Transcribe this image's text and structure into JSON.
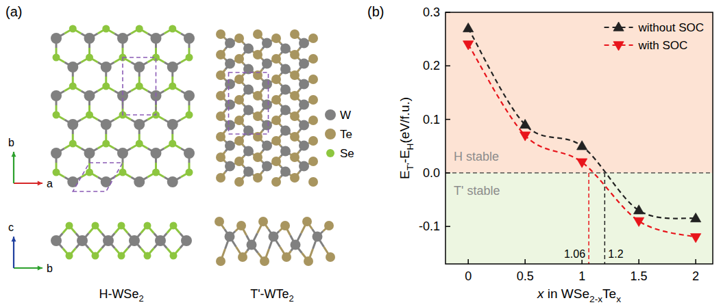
{
  "diagram": {
    "label": "(a)",
    "axes": {
      "top": [
        "a",
        "b"
      ],
      "side": [
        "b",
        "c"
      ]
    },
    "legend": [
      {
        "name": "W",
        "color": "#808080"
      },
      {
        "name": "Te",
        "color": "#a8955f"
      },
      {
        "name": "Se",
        "color": "#8dc63f"
      }
    ],
    "structures": [
      {
        "label": [
          {
            "t": "H-WSe"
          },
          {
            "t": "2",
            "sub": true
          }
        ]
      },
      {
        "label": [
          {
            "t": "T'-WTe"
          },
          {
            "t": "2",
            "sub": true
          }
        ]
      }
    ]
  },
  "chart_data": {
    "type": "line",
    "panel_label": "(b)",
    "x_label": [
      {
        "t": "x",
        "italic": true
      },
      {
        "t": " in WSe"
      },
      {
        "t": "2-x",
        "sub": true
      },
      {
        "t": "Te"
      },
      {
        "t": "x",
        "sub": true
      }
    ],
    "y_label": [
      {
        "t": "E"
      },
      {
        "t": "T'",
        "sub": true
      },
      {
        "t": "-E"
      },
      {
        "t": "H",
        "sub": true
      },
      {
        "t": "(eV/f.u.)"
      }
    ],
    "x": [
      0,
      0.5,
      1,
      1.5,
      2
    ],
    "series": [
      {
        "name": "without SOC",
        "color": "#222222",
        "marker": "triangle-up",
        "line_style": "dashed",
        "values": [
          0.27,
          0.09,
          0.05,
          -0.07,
          -0.085
        ]
      },
      {
        "name": "with SOC",
        "color": "#e8141b",
        "marker": "triangle-down",
        "line_style": "dashed",
        "values": [
          0.24,
          0.07,
          0.02,
          -0.09,
          -0.12
        ]
      }
    ],
    "xlim": [
      -0.2,
      2.15
    ],
    "xticks": [
      0,
      0.5,
      1,
      1.5,
      2
    ],
    "ylim": [
      -0.17,
      0.3
    ],
    "yticks": [
      -0.1,
      {
        "value": 0,
        "label": "0.0"
      },
      0.1,
      0.2,
      0.3
    ],
    "legend": "upper right",
    "regions": [
      {
        "text": "H stable",
        "from": 0,
        "to": 0.3,
        "color": "#fde3d4"
      },
      {
        "text": "T' stable",
        "from": -0.17,
        "to": 0,
        "color": "#edf6e1"
      }
    ],
    "reference_lines": [
      {
        "axis": "y",
        "value": 0
      },
      {
        "axis": "x",
        "value": 1.06,
        "label": "1.06",
        "color": "#e8141b"
      },
      {
        "axis": "x",
        "value": 1.2,
        "label": "1.2",
        "color": "#222222"
      }
    ]
  }
}
